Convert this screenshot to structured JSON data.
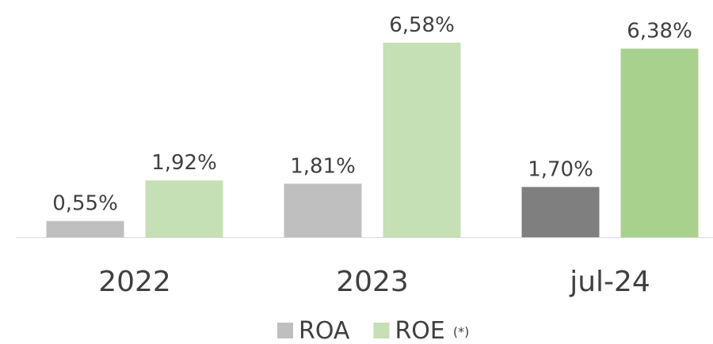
{
  "chart_data": {
    "type": "bar",
    "categories": [
      "2022",
      "2023",
      "jul-24"
    ],
    "series": [
      {
        "name": "ROA",
        "color": "#bfbfbf",
        "colors": [
          "#bfbfbf",
          "#bfbfbf",
          "#7f7f7f"
        ],
        "values": [
          0.55,
          1.81,
          1.7
        ],
        "value_labels": [
          "0,55%",
          "1,81%",
          "1,70%"
        ]
      },
      {
        "name": "ROE",
        "color": "#c5e0b4",
        "colors": [
          "#c5e0b4",
          "#c5e0b4",
          "#a9d18e"
        ],
        "values": [
          1.92,
          6.58,
          6.38
        ],
        "value_labels": [
          "1,92%",
          "6,58%",
          "6,38%"
        ]
      }
    ],
    "legend_note": "(*)",
    "legend": "bottom"
  }
}
